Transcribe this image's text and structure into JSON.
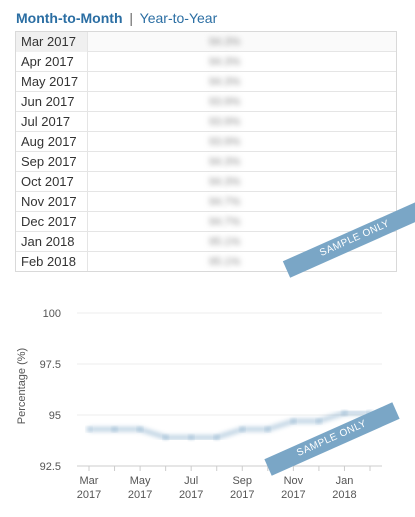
{
  "tabs": {
    "active": "Month-to-Month",
    "separator": "|",
    "other": "Year-to-Year"
  },
  "table": {
    "rows": [
      {
        "month": "Mar 2017",
        "value": "94.3%"
      },
      {
        "month": "Apr 2017",
        "value": "94.3%"
      },
      {
        "month": "May 2017",
        "value": "94.3%"
      },
      {
        "month": "Jun 2017",
        "value": "93.9%"
      },
      {
        "month": "Jul 2017",
        "value": "93.9%"
      },
      {
        "month": "Aug 2017",
        "value": "93.9%"
      },
      {
        "month": "Sep 2017",
        "value": "94.3%"
      },
      {
        "month": "Oct 2017",
        "value": "94.3%"
      },
      {
        "month": "Nov 2017",
        "value": "94.7%"
      },
      {
        "month": "Dec 2017",
        "value": "94.7%"
      },
      {
        "month": "Jan 2018",
        "value": "95.1%"
      },
      {
        "month": "Feb 2018",
        "value": "95.1%"
      }
    ]
  },
  "watermark": "SAMPLE ONLY",
  "chart_data": {
    "type": "line",
    "ylabel": "Percentage (%)",
    "ylim": [
      92.5,
      100
    ],
    "yticks": [
      "100",
      "97.5",
      "95",
      "92.5"
    ],
    "xtick_labels": [
      {
        "m": "Mar",
        "y": "2017"
      },
      {
        "m": "May",
        "y": "2017"
      },
      {
        "m": "Jul",
        "y": "2017"
      },
      {
        "m": "Sep",
        "y": "2017"
      },
      {
        "m": "Nov",
        "y": "2017"
      },
      {
        "m": "Jan",
        "y": "2018"
      }
    ],
    "x": [
      "Mar 2017",
      "Apr 2017",
      "May 2017",
      "Jun 2017",
      "Jul 2017",
      "Aug 2017",
      "Sep 2017",
      "Oct 2017",
      "Nov 2017",
      "Dec 2017",
      "Jan 2018",
      "Feb 2018"
    ],
    "values": [
      94.3,
      94.3,
      94.3,
      93.9,
      93.9,
      93.9,
      94.3,
      94.3,
      94.7,
      94.7,
      95.1,
      95.1
    ],
    "line_color": "#2b6ea3",
    "grid": true
  }
}
